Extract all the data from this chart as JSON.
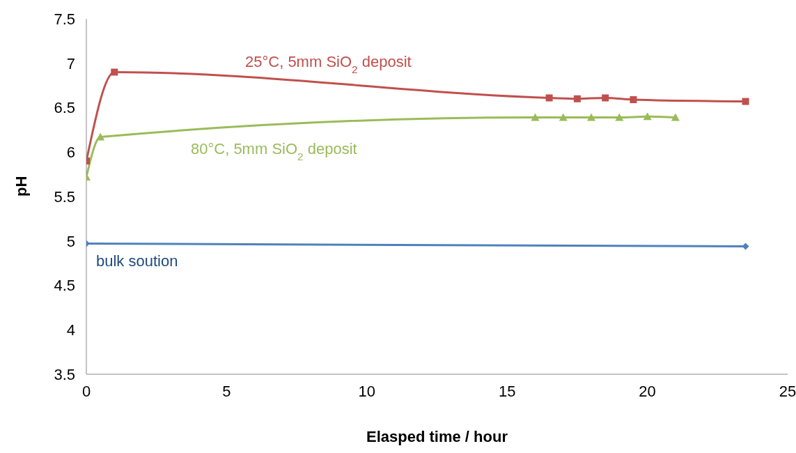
{
  "chart_data": {
    "type": "line",
    "xlabel": "Elasped time / hour",
    "ylabel": "pH",
    "xlim": [
      0,
      25
    ],
    "xticks": [
      0,
      5,
      10,
      15,
      20,
      25
    ],
    "ylim": [
      3.5,
      7.5
    ],
    "yticks": [
      3.5,
      4,
      4.5,
      5,
      5.5,
      6,
      6.5,
      7,
      7.5
    ],
    "series": [
      {
        "name": "25°C, 5mm SiO$_{2}$ deposit",
        "color": "#c0504d",
        "marker": "square",
        "x": [
          0,
          1,
          16.5,
          17.5,
          18.5,
          19.5,
          23.5
        ],
        "values": [
          5.9,
          6.9,
          6.61,
          6.6,
          6.61,
          6.59,
          6.57
        ]
      },
      {
        "name": "80°C, 5mm SiO$_{2}$ deposit",
        "color": "#9bbb59",
        "marker": "triangle",
        "x": [
          0,
          0.5,
          16,
          17,
          18,
          19,
          20,
          21
        ],
        "values": [
          5.72,
          6.17,
          6.39,
          6.39,
          6.39,
          6.39,
          6.4,
          6.39
        ]
      },
      {
        "name": "bulk soution",
        "color": "#4f81bd",
        "marker": "diamond",
        "x": [
          0,
          23.5
        ],
        "values": [
          4.97,
          4.94
        ]
      }
    ]
  }
}
